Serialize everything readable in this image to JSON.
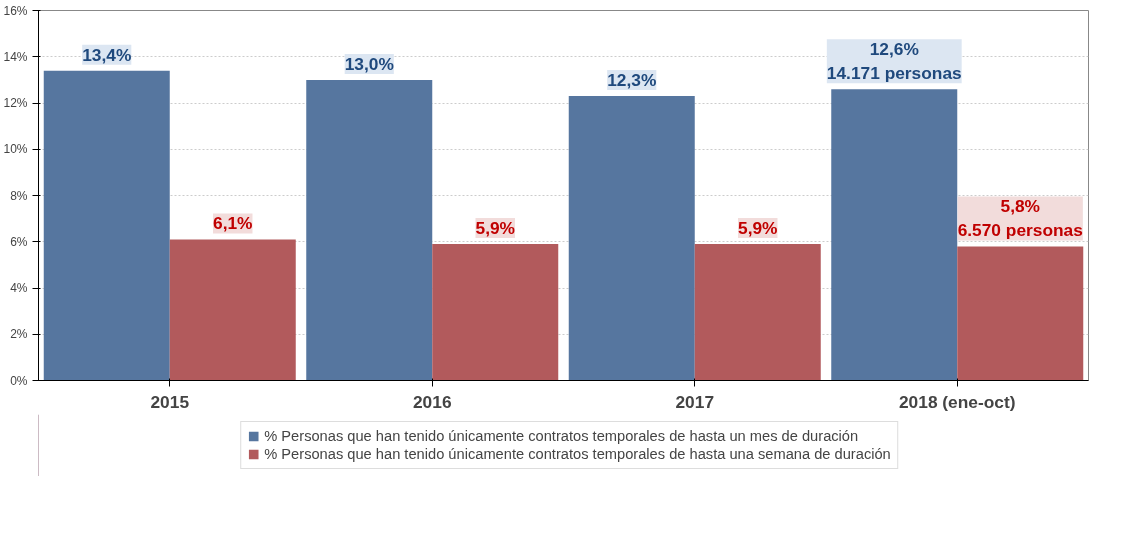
{
  "chart_data": {
    "type": "bar",
    "categories": [
      "2015",
      "2016",
      "2017",
      "2018 (ene-oct)"
    ],
    "series": [
      {
        "name": "% Personas que han tenido únicamente contratos temporales de hasta un mes de duración",
        "color": "#56769f",
        "values": [
          13.4,
          13.0,
          12.3,
          12.6
        ],
        "value_labels": [
          "13,4%",
          "13,0%",
          "12,3%",
          "12,6%\n14.171 personas"
        ]
      },
      {
        "name": "% Personas que han tenido únicamente contratos temporales de hasta una semana de duración",
        "color": "#b25a5c",
        "values": [
          6.1,
          5.9,
          5.9,
          5.8
        ],
        "value_labels": [
          "6,1%",
          "5,9%",
          "5,9%",
          "5,8%\n6.570 personas"
        ]
      }
    ],
    "ylim": [
      0,
      16
    ],
    "yticks": [
      {
        "value": 0,
        "label": "0%"
      },
      {
        "value": 2,
        "label": "2%"
      },
      {
        "value": 4,
        "label": "4%"
      },
      {
        "value": 6,
        "label": "6%"
      },
      {
        "value": 8,
        "label": "8%"
      },
      {
        "value": 10,
        "label": "10%"
      },
      {
        "value": 12,
        "label": "12%"
      },
      {
        "value": 14,
        "label": "14%"
      },
      {
        "value": 16,
        "label": "16%"
      }
    ],
    "grid": "y",
    "legend": "bottom"
  }
}
